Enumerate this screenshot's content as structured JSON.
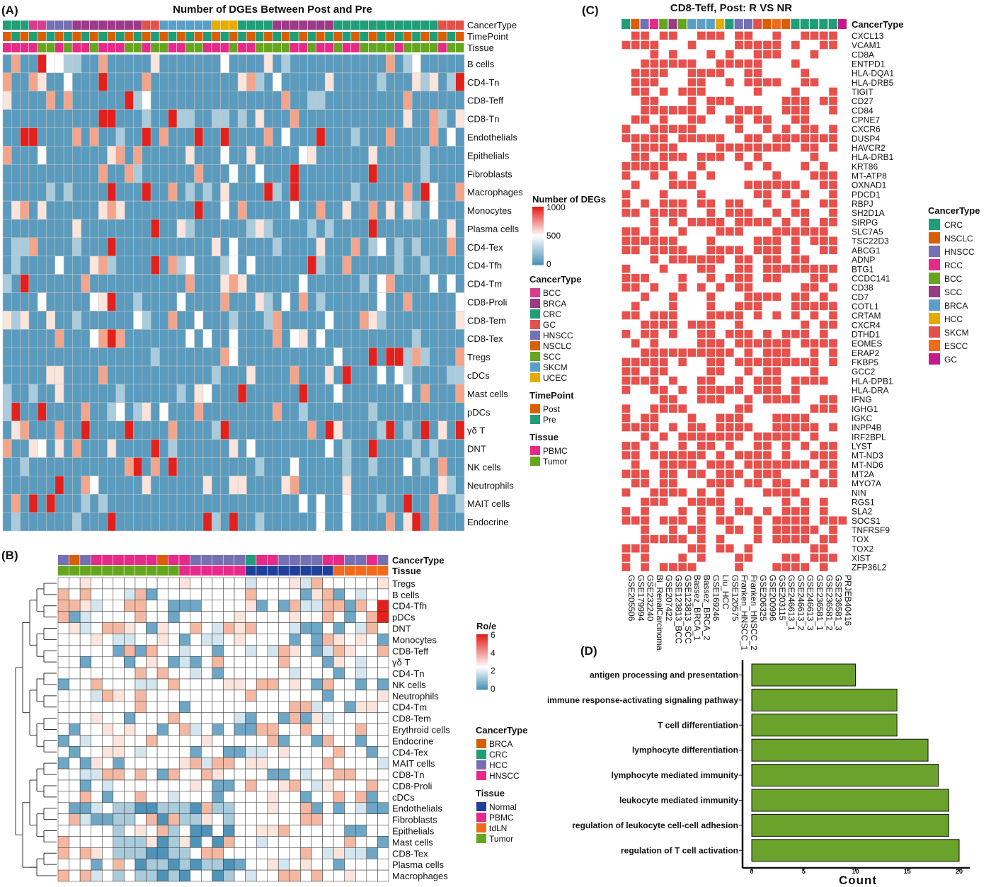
{
  "panelA": {
    "label": "(A)",
    "title": "Number of DGEs Between Post and Pre",
    "track_labels": [
      "CancerType",
      "TimePoint",
      "Tissue"
    ],
    "rows": [
      "B cells",
      "CD4-Tn",
      "CD8-Teff",
      "CD8-Tn",
      "Endothelials",
      "Epithelials",
      "Fibroblasts",
      "Macrophages",
      "Monocytes",
      "Plasma cells",
      "CD4-Tex",
      "CD4-Tfh",
      "CD4-Tm",
      "CD8-Proli",
      "CD8-Tem",
      "CD8-Tex",
      "Tregs",
      "cDCs",
      "Mast cells",
      "pDCs",
      "γδ T",
      "DNT",
      "NK cells",
      "Neutrophils",
      "MAIT cells",
      "Endocrine"
    ],
    "n_cols": 53,
    "colorbar": {
      "title": "Number of DEGs",
      "ticks": [
        "1000",
        "500",
        "0"
      ],
      "range": [
        0,
        1000
      ],
      "low": "#4f93b8",
      "mid": "#ffffff",
      "high": "#e3201c"
    },
    "legends": [
      {
        "title": "CancerType",
        "items": [
          {
            "label": "BCC",
            "color": "#d63d8a"
          },
          {
            "label": "BRCA",
            "color": "#9b3a86"
          },
          {
            "label": "CRC",
            "color": "#1f9e77"
          },
          {
            "label": "GC",
            "color": "#e3514c"
          },
          {
            "label": "HNSCC",
            "color": "#7570b3"
          },
          {
            "label": "NSCLC",
            "color": "#d95f02"
          },
          {
            "label": "SCC",
            "color": "#66a61e"
          },
          {
            "label": "SKCM",
            "color": "#5b9fc9"
          },
          {
            "label": "UCEC",
            "color": "#e6ab02"
          }
        ]
      },
      {
        "title": "TimePoint",
        "items": [
          {
            "label": "Post",
            "color": "#d95f02"
          },
          {
            "label": "Pre",
            "color": "#1f9e77"
          }
        ]
      },
      {
        "title": "Tissue",
        "items": [
          {
            "label": "PBMC",
            "color": "#e7298a"
          },
          {
            "label": "Tumor",
            "color": "#66a61e"
          }
        ]
      }
    ]
  },
  "panelB": {
    "label": "(B)",
    "track_labels": [
      "CancerType",
      "Tissue"
    ],
    "rows": [
      "Tregs",
      "B cells",
      "CD4-Tfh",
      "pDCs",
      "DNT",
      "Monocytes",
      "CD8-Teff",
      "γδ T",
      "CD4-Tn",
      "NK cells",
      "Neutrophils",
      "CD4-Tm",
      "CD8-Tem",
      "Erythroid cells",
      "Endocrine",
      "CD4-Tex",
      "MAIT cells",
      "CD8-Tn",
      "CD8-Proli",
      "cDCs",
      "Endothelials",
      "Fibroblasts",
      "Epithelials",
      "Mast cells",
      "CD8-Tex",
      "Plasma cells",
      "Macrophages"
    ],
    "n_cols": 30,
    "colorbar": {
      "title": "Ro/e",
      "ticks": [
        "6",
        "4",
        "2",
        "0"
      ],
      "range": [
        0,
        6
      ]
    },
    "legends": [
      {
        "title": "CancerType",
        "items": [
          {
            "label": "BRCA",
            "color": "#d95f02"
          },
          {
            "label": "CRC",
            "color": "#1f9e77"
          },
          {
            "label": "HCC",
            "color": "#7570b3"
          },
          {
            "label": "HNSCC",
            "color": "#e7298a"
          }
        ]
      },
      {
        "title": "Tissue",
        "items": [
          {
            "label": "Normal",
            "color": "#1f3f99"
          },
          {
            "label": "PBMC",
            "color": "#e7298a"
          },
          {
            "label": "tdLN",
            "color": "#f26b1d"
          },
          {
            "label": "Tumor",
            "color": "#66a61e"
          }
        ]
      }
    ]
  },
  "panelC": {
    "label": "(C)",
    "title": "CD8-Teff, Post: R VS NR",
    "track_label": "CancerType",
    "genes": [
      "CXCL13",
      "VCAM1",
      "CD8A",
      "ENTPD1",
      "HLA-DQA1",
      "HLA-DRB5",
      "TIGIT",
      "CD27",
      "CD84",
      "CPNE7",
      "CXCR6",
      "DUSP4",
      "HAVCR2",
      "HLA-DRB1",
      "KRT86",
      "MT-ATP8",
      "OXNAD1",
      "PDCD1",
      "RBPJ",
      "SH2D1A",
      "SIRPG",
      "SLC7A5",
      "TSC22D3",
      "ABCG1",
      "ADNP",
      "BTG1",
      "CCDC141",
      "CD38",
      "CD7",
      "COTL1",
      "CRTAM",
      "CXCR4",
      "DTHD1",
      "EOMES",
      "ERAP2",
      "FKBP5",
      "GCC2",
      "HLA-DPB1",
      "HLA-DRA",
      "IFNG",
      "IGHG1",
      "IGKC",
      "INPP4B",
      "IRF2BPL",
      "LYST",
      "MT-ND3",
      "MT-ND6",
      "MT2A",
      "MYO7A",
      "NIN",
      "RGS1",
      "SLA2",
      "SOCS1",
      "TNFRSF9",
      "TOX",
      "TOX2",
      "XIST",
      "ZFP36L2"
    ],
    "datasets": [
      "GSE205506",
      "GSE179994",
      "GSE232240",
      "Bi_RenalCarcinoma",
      "GSE207422",
      "GSE123813_BCC",
      "GSE123813_SCC",
      "Bassez_BRCA_1",
      "Bassez_BRCA_2",
      "GSE169246",
      "Liu_HCC",
      "GSE120575",
      "Franken_HNSCC_1",
      "Franken_HNSCC_2",
      "GSE206325",
      "GSE200996",
      "GSE203115",
      "GSE246613_1",
      "GSE246613_2",
      "GSE246613_3",
      "GSE236581_1",
      "GSE236581_2",
      "GSE236581_3",
      "PRJEB40416"
    ],
    "cell_color": "#e8504c",
    "legend": {
      "title": "CancerType",
      "items": [
        {
          "label": "CRC",
          "color": "#1f9e77"
        },
        {
          "label": "NSCLC",
          "color": "#d95f02"
        },
        {
          "label": "HNSCC",
          "color": "#7570b3"
        },
        {
          "label": "RCC",
          "color": "#e7298a"
        },
        {
          "label": "BCC",
          "color": "#66a61e"
        },
        {
          "label": "SCC",
          "color": "#9b3a86"
        },
        {
          "label": "BRCA",
          "color": "#5b9fc9"
        },
        {
          "label": "HCC",
          "color": "#e6ab02"
        },
        {
          "label": "SKCM",
          "color": "#e3514c"
        },
        {
          "label": "ESCC",
          "color": "#f26b1d"
        },
        {
          "label": "GC",
          "color": "#c51b8a"
        }
      ]
    }
  },
  "chart_data": [
    {
      "type": "bar",
      "label": "(D)",
      "categories": [
        "antigen processing and presentation",
        "immune response-activating signaling pathway",
        "T cell differentiation",
        "lymphocyte differentiation",
        "lymphocyte mediated immunity",
        "leukocyte mediated immunity",
        "regulation of leukocyte cell-cell adhesion",
        "regulation of T cell activation"
      ],
      "values": [
        10,
        14,
        14,
        17,
        18,
        19,
        19,
        20
      ],
      "orientation": "horizontal",
      "xlabel": "Count",
      "xlim": [
        0,
        21
      ],
      "xticks": [
        0,
        5,
        10,
        15,
        20
      ],
      "bar_color": "#6aa22c"
    }
  ]
}
